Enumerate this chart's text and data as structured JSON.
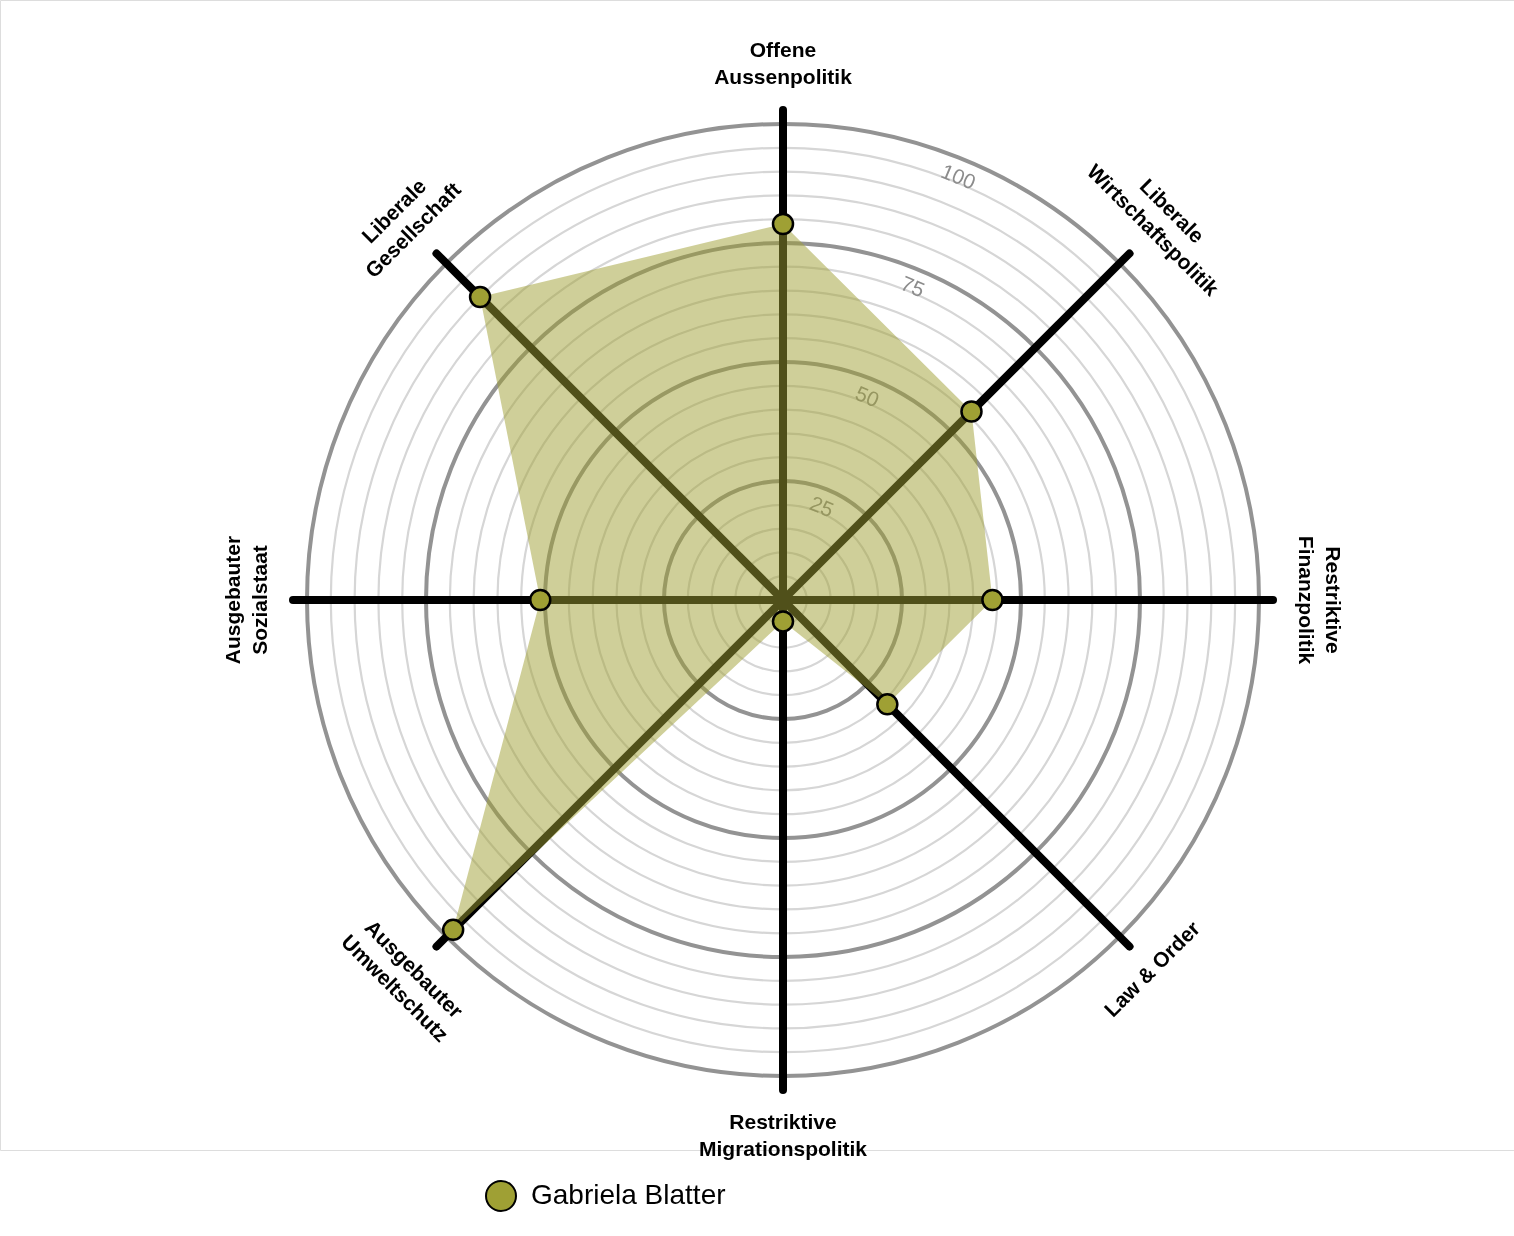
{
  "chart_data": {
    "type": "radar",
    "categories": [
      "Offene\nAussenpolitik",
      "Liberale\nWirtschaftspolitik",
      "Restriktive\nFinanzpolitik",
      "Law & Order",
      "Restriktive\nMigrationspolitik",
      "Ausgebauter\nUmweltschutz",
      "Ausgebauter\nSozialstaat",
      "Liberale\nGesellschaft"
    ],
    "series": [
      {
        "name": "Gabriela Blatter",
        "color": "#9fa034",
        "values": [
          79,
          56,
          44,
          31,
          4.5,
          98,
          51,
          90
        ]
      }
    ],
    "ylim": [
      0,
      100
    ],
    "yticks": [
      25,
      50,
      75,
      100
    ],
    "grid": true,
    "legend": "bottom",
    "marker": "circle"
  }
}
